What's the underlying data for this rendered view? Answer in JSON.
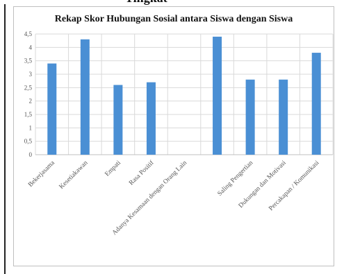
{
  "top_clip_text": "Tingkat",
  "chart_data": {
    "type": "bar",
    "title": "Rekap Skor Hubungan Sosial antara Siswa dengan Siswa",
    "xlabel": "",
    "ylabel": "",
    "categories": [
      "Bekerjasama",
      "Kesetiakawan",
      "Empati",
      "Rasa Positif",
      "Adanya Kesamaan dengan Orang Lain",
      "",
      "Saling Pengertian",
      "Dukungan dan Motivasi",
      "Percakapan / Komunikasi"
    ],
    "values": [
      3.4,
      4.3,
      2.6,
      2.7,
      null,
      4.4,
      2.8,
      2.8,
      3.8
    ],
    "ylim": [
      0,
      4.5
    ],
    "yticks": [
      "0",
      "0,5",
      "1",
      "1,5",
      "2",
      "2,5",
      "3",
      "3,5",
      "4",
      "4,5"
    ],
    "bar_color": "#4a8fd4",
    "grid": true,
    "legend": "none"
  }
}
